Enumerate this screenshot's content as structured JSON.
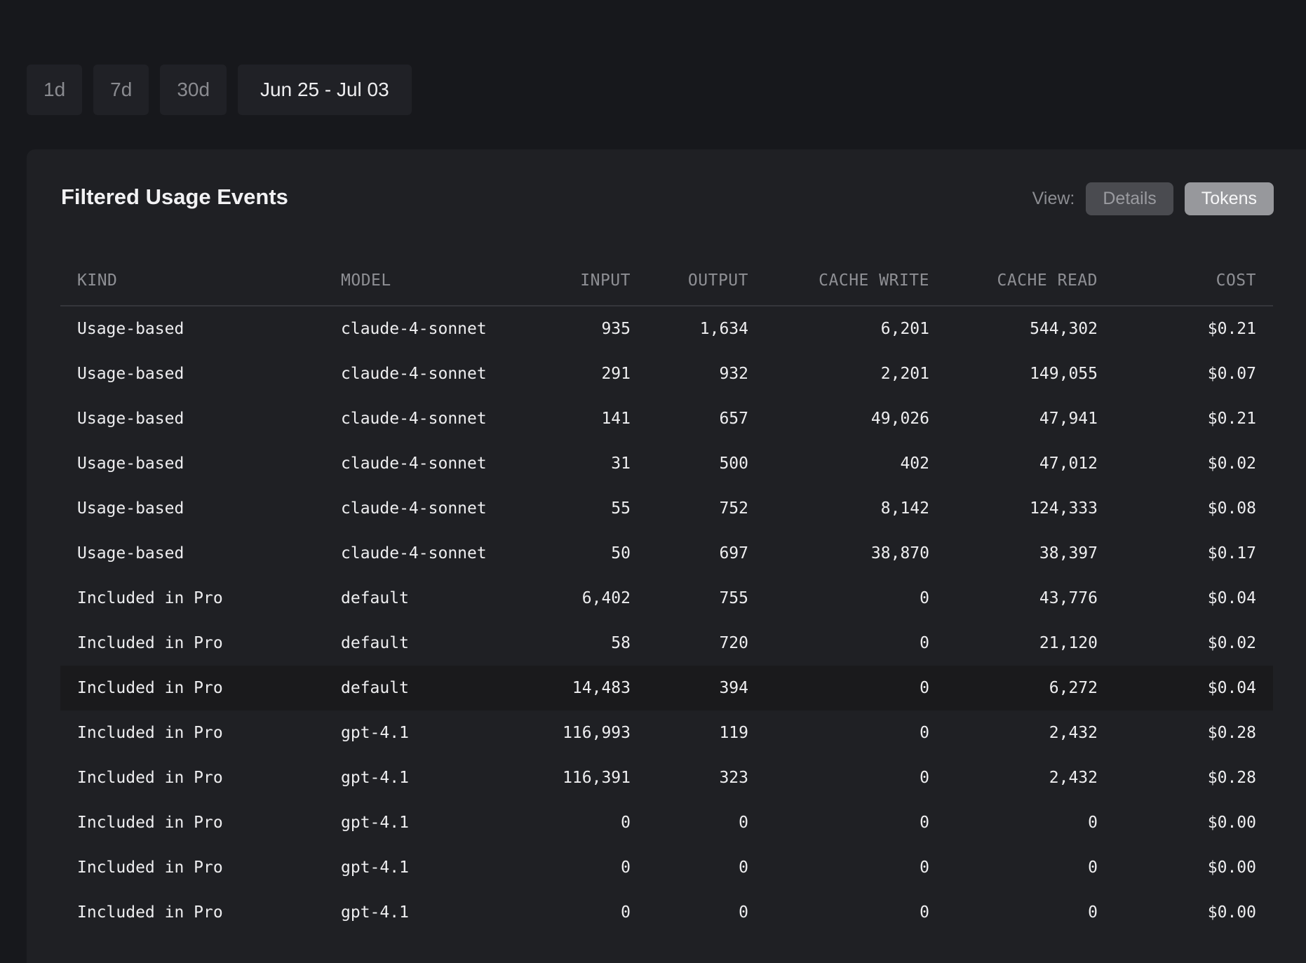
{
  "range_buttons": [
    {
      "label": "1d"
    },
    {
      "label": "7d"
    },
    {
      "label": "30d"
    },
    {
      "label": "Jun 25 - Jul 03"
    }
  ],
  "card": {
    "title": "Filtered Usage Events",
    "view_label": "View:",
    "view_options": [
      {
        "label": "Details",
        "active": false
      },
      {
        "label": "Tokens",
        "active": true
      }
    ]
  },
  "table": {
    "columns": [
      "KIND",
      "MODEL",
      "INPUT",
      "OUTPUT",
      "CACHE WRITE",
      "CACHE READ",
      "COST"
    ],
    "rows": [
      [
        "Usage-based",
        "claude-4-sonnet",
        "935",
        "1,634",
        "6,201",
        "544,302",
        "$0.21"
      ],
      [
        "Usage-based",
        "claude-4-sonnet",
        "291",
        "932",
        "2,201",
        "149,055",
        "$0.07"
      ],
      [
        "Usage-based",
        "claude-4-sonnet",
        "141",
        "657",
        "49,026",
        "47,941",
        "$0.21"
      ],
      [
        "Usage-based",
        "claude-4-sonnet",
        "31",
        "500",
        "402",
        "47,012",
        "$0.02"
      ],
      [
        "Usage-based",
        "claude-4-sonnet",
        "55",
        "752",
        "8,142",
        "124,333",
        "$0.08"
      ],
      [
        "Usage-based",
        "claude-4-sonnet",
        "50",
        "697",
        "38,870",
        "38,397",
        "$0.17"
      ],
      [
        "Included in Pro",
        "default",
        "6,402",
        "755",
        "0",
        "43,776",
        "$0.04"
      ],
      [
        "Included in Pro",
        "default",
        "58",
        "720",
        "0",
        "21,120",
        "$0.02"
      ],
      [
        "Included in Pro",
        "default",
        "14,483",
        "394",
        "0",
        "6,272",
        "$0.04"
      ],
      [
        "Included in Pro",
        "gpt-4.1",
        "116,993",
        "119",
        "0",
        "2,432",
        "$0.28"
      ],
      [
        "Included in Pro",
        "gpt-4.1",
        "116,391",
        "323",
        "0",
        "2,432",
        "$0.28"
      ],
      [
        "Included in Pro",
        "gpt-4.1",
        "0",
        "0",
        "0",
        "0",
        "$0.00"
      ],
      [
        "Included in Pro",
        "gpt-4.1",
        "0",
        "0",
        "0",
        "0",
        "$0.00"
      ],
      [
        "Included in Pro",
        "gpt-4.1",
        "0",
        "0",
        "0",
        "0",
        "$0.00"
      ]
    ],
    "highlighted_row": 8
  }
}
